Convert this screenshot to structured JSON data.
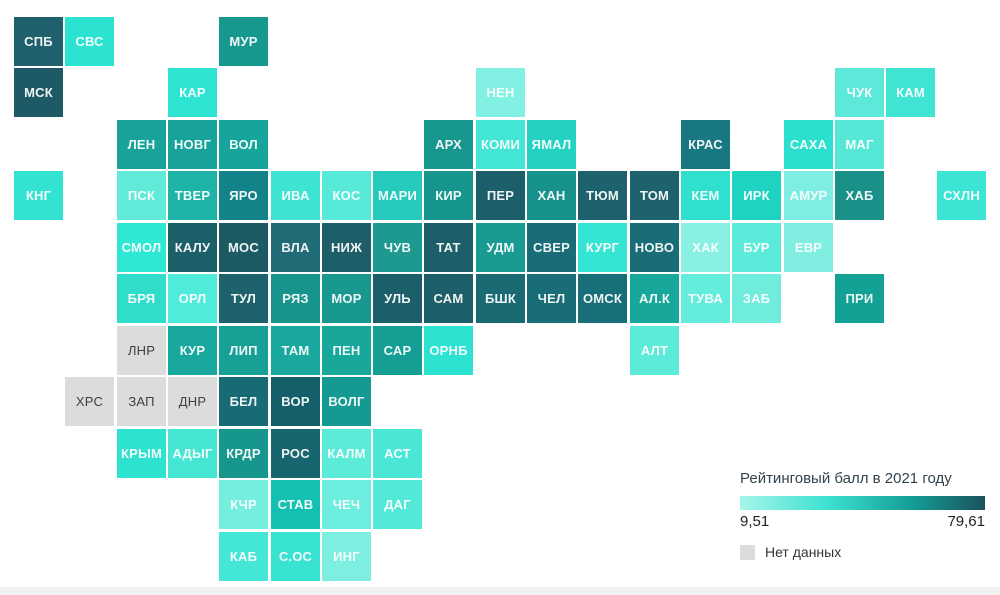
{
  "chart_data": {
    "type": "heatmap",
    "subtype": "tile-cartogram-russia-regions",
    "legend": {
      "title": "Рейтинговый балл в 2021 году",
      "min_label": "9,51",
      "max_label": "79,61",
      "no_data_label": "Нет данных",
      "no_data_color": "#dcdcdc",
      "gradient_stops": [
        "#a6f4e9",
        "#3fe2d1",
        "#149e96",
        "#1a525d"
      ],
      "scale_min": 9.51,
      "scale_max": 79.61,
      "position": "bottom-right"
    },
    "tiles": [
      {
        "label": "СПБ",
        "col": 0,
        "row": 0,
        "color": "#20606c"
      },
      {
        "label": "СВС",
        "col": 1,
        "row": 0,
        "color": "#2ce3d1"
      },
      {
        "label": "МУР",
        "col": 4,
        "row": 0,
        "color": "#16988f"
      },
      {
        "label": "МСК",
        "col": 0,
        "row": 1,
        "color": "#1e5a66"
      },
      {
        "label": "КАР",
        "col": 3,
        "row": 1,
        "color": "#2de4d2"
      },
      {
        "label": "НЕН",
        "col": 9,
        "row": 1,
        "color": "#83f0e4"
      },
      {
        "label": "ЧУК",
        "col": 16,
        "row": 1,
        "color": "#5ce9d9"
      },
      {
        "label": "КАМ",
        "col": 17,
        "row": 1,
        "color": "#40e4d3"
      },
      {
        "label": "ЛЕН",
        "col": 2,
        "row": 2,
        "color": "#18a299"
      },
      {
        "label": "НОВГ",
        "col": 3,
        "row": 2,
        "color": "#17a39a"
      },
      {
        "label": "ВОЛ",
        "col": 4,
        "row": 2,
        "color": "#16a59b"
      },
      {
        "label": "АРХ",
        "col": 8,
        "row": 2,
        "color": "#18978e"
      },
      {
        "label": "КОМИ",
        "col": 9,
        "row": 2,
        "color": "#43e5d4"
      },
      {
        "label": "ЯМАЛ",
        "col": 10,
        "row": 2,
        "color": "#25d1c1"
      },
      {
        "label": "КРАС",
        "col": 13,
        "row": 2,
        "color": "#187781"
      },
      {
        "label": "САХА",
        "col": 15,
        "row": 2,
        "color": "#2ce0cf"
      },
      {
        "label": "МАГ",
        "col": 16,
        "row": 2,
        "color": "#55e8d7"
      },
      {
        "label": "КНГ",
        "col": 0,
        "row": 3,
        "color": "#32e3d1"
      },
      {
        "label": "ПСК",
        "col": 2,
        "row": 3,
        "color": "#62ead9"
      },
      {
        "label": "ТВЕР",
        "col": 3,
        "row": 3,
        "color": "#1db3a7"
      },
      {
        "label": "ЯРО",
        "col": 4,
        "row": 3,
        "color": "#13838a"
      },
      {
        "label": "ИВА",
        "col": 5,
        "row": 3,
        "color": "#3ee3d2"
      },
      {
        "label": "КОС",
        "col": 6,
        "row": 3,
        "color": "#58ead9"
      },
      {
        "label": "МАРИ",
        "col": 7,
        "row": 3,
        "color": "#26cabd"
      },
      {
        "label": "КИР",
        "col": 8,
        "row": 3,
        "color": "#17968e"
      },
      {
        "label": "ПЕР",
        "col": 9,
        "row": 3,
        "color": "#1c5f6a"
      },
      {
        "label": "ХАН",
        "col": 10,
        "row": 3,
        "color": "#17938c"
      },
      {
        "label": "ТЮМ",
        "col": 11,
        "row": 3,
        "color": "#1d626c"
      },
      {
        "label": "ТОМ",
        "col": 12,
        "row": 3,
        "color": "#1d626c"
      },
      {
        "label": "КЕМ",
        "col": 13,
        "row": 3,
        "color": "#2fe0cf"
      },
      {
        "label": "ИРК",
        "col": 14,
        "row": 3,
        "color": "#1fd3c3"
      },
      {
        "label": "АМУР",
        "col": 15,
        "row": 3,
        "color": "#7deee1"
      },
      {
        "label": "ХАБ",
        "col": 16,
        "row": 3,
        "color": "#199189"
      },
      {
        "label": "СХЛН",
        "col": 18,
        "row": 3,
        "color": "#3ce4d4"
      },
      {
        "label": "СМОЛ",
        "col": 2,
        "row": 4,
        "color": "#2fe8d4"
      },
      {
        "label": "КАЛУ",
        "col": 3,
        "row": 4,
        "color": "#1b5f68"
      },
      {
        "label": "МОС",
        "col": 4,
        "row": 4,
        "color": "#1c5a64"
      },
      {
        "label": "ВЛА",
        "col": 5,
        "row": 4,
        "color": "#206b75"
      },
      {
        "label": "НИЖ",
        "col": 6,
        "row": 4,
        "color": "#1d5e68"
      },
      {
        "label": "ЧУВ",
        "col": 7,
        "row": 4,
        "color": "#1d998f"
      },
      {
        "label": "ТАТ",
        "col": 8,
        "row": 4,
        "color": "#1c5f68"
      },
      {
        "label": "УДМ",
        "col": 9,
        "row": 4,
        "color": "#199b92"
      },
      {
        "label": "СВЕР",
        "col": 10,
        "row": 4,
        "color": "#196d77"
      },
      {
        "label": "КУРГ",
        "col": 11,
        "row": 4,
        "color": "#35e5d3"
      },
      {
        "label": "НОВО",
        "col": 12,
        "row": 4,
        "color": "#196d77"
      },
      {
        "label": "ХАК",
        "col": 13,
        "row": 4,
        "color": "#8af0e4"
      },
      {
        "label": "БУР",
        "col": 14,
        "row": 4,
        "color": "#5ceadb"
      },
      {
        "label": "ЕВР",
        "col": 15,
        "row": 4,
        "color": "#80efe2"
      },
      {
        "label": "БРЯ",
        "col": 2,
        "row": 5,
        "color": "#30dcca"
      },
      {
        "label": "ОРЛ",
        "col": 3,
        "row": 5,
        "color": "#4febdb"
      },
      {
        "label": "ТУЛ",
        "col": 4,
        "row": 5,
        "color": "#1d626c"
      },
      {
        "label": "РЯЗ",
        "col": 5,
        "row": 5,
        "color": "#17948c"
      },
      {
        "label": "МОР",
        "col": 6,
        "row": 5,
        "color": "#18988f"
      },
      {
        "label": "УЛЬ",
        "col": 7,
        "row": 5,
        "color": "#1d5f69"
      },
      {
        "label": "САМ",
        "col": 8,
        "row": 5,
        "color": "#1d5f69"
      },
      {
        "label": "БШК",
        "col": 9,
        "row": 5,
        "color": "#1a6a74"
      },
      {
        "label": "ЧЕЛ",
        "col": 10,
        "row": 5,
        "color": "#196d76"
      },
      {
        "label": "ОМСК",
        "col": 11,
        "row": 5,
        "color": "#186f79"
      },
      {
        "label": "АЛ.К",
        "col": 12,
        "row": 5,
        "color": "#17a79b"
      },
      {
        "label": "ТУВА",
        "col": 13,
        "row": 5,
        "color": "#64ecdc"
      },
      {
        "label": "ЗАБ",
        "col": 14,
        "row": 5,
        "color": "#6fecdc"
      },
      {
        "label": "ПРИ",
        "col": 16,
        "row": 5,
        "color": "#12a195"
      },
      {
        "label": "ЛНР",
        "col": 2,
        "row": 6,
        "color": "#dcdcdc"
      },
      {
        "label": "КУР",
        "col": 3,
        "row": 6,
        "color": "#19a89d"
      },
      {
        "label": "ЛИП",
        "col": 4,
        "row": 6,
        "color": "#17a096"
      },
      {
        "label": "ТАМ",
        "col": 5,
        "row": 6,
        "color": "#18a89d"
      },
      {
        "label": "ПЕН",
        "col": 6,
        "row": 6,
        "color": "#17a89b"
      },
      {
        "label": "САР",
        "col": 7,
        "row": 6,
        "color": "#159e94"
      },
      {
        "label": "ОРНБ",
        "col": 8,
        "row": 6,
        "color": "#2ce3d1"
      },
      {
        "label": "АЛТ",
        "col": 12,
        "row": 6,
        "color": "#5cead9"
      },
      {
        "label": "ХРС",
        "col": 1,
        "row": 7,
        "color": "#dcdcdc"
      },
      {
        "label": "ЗАП",
        "col": 2,
        "row": 7,
        "color": "#dcdcdc"
      },
      {
        "label": "ДНР",
        "col": 3,
        "row": 7,
        "color": "#dcdcdc"
      },
      {
        "label": "БЕЛ",
        "col": 4,
        "row": 7,
        "color": "#176b75"
      },
      {
        "label": "ВОР",
        "col": 5,
        "row": 7,
        "color": "#155f6a"
      },
      {
        "label": "ВОЛГ",
        "col": 6,
        "row": 7,
        "color": "#149a92"
      },
      {
        "label": "КРЫМ",
        "col": 2,
        "row": 8,
        "color": "#2ee2d0"
      },
      {
        "label": "АДЫГ",
        "col": 3,
        "row": 8,
        "color": "#45e6d4"
      },
      {
        "label": "КРДР",
        "col": 4,
        "row": 8,
        "color": "#17968e"
      },
      {
        "label": "РОС",
        "col": 5,
        "row": 8,
        "color": "#17666f"
      },
      {
        "label": "КАЛМ",
        "col": 6,
        "row": 8,
        "color": "#5cead9"
      },
      {
        "label": "АСТ",
        "col": 7,
        "row": 8,
        "color": "#4be7d6"
      },
      {
        "label": "КЧР",
        "col": 4,
        "row": 9,
        "color": "#74eede"
      },
      {
        "label": "СТАВ",
        "col": 5,
        "row": 9,
        "color": "#14c0b2"
      },
      {
        "label": "ЧЕЧ",
        "col": 6,
        "row": 9,
        "color": "#6ceddd"
      },
      {
        "label": "ДАГ",
        "col": 7,
        "row": 9,
        "color": "#52e9d8"
      },
      {
        "label": "КАБ",
        "col": 4,
        "row": 10,
        "color": "#44e6d5"
      },
      {
        "label": "С.ОС",
        "col": 5,
        "row": 10,
        "color": "#38e3d2"
      },
      {
        "label": "ИНГ",
        "col": 6,
        "row": 10,
        "color": "#7cefe1"
      }
    ]
  }
}
